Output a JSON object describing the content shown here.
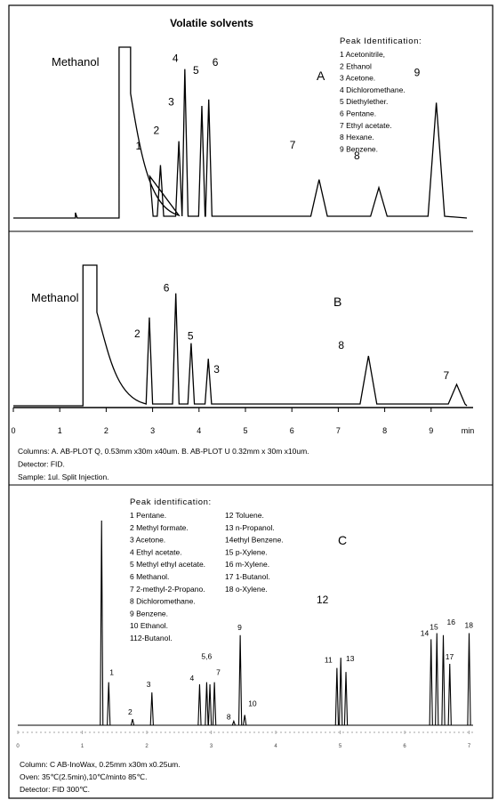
{
  "title": "Volatile solvents",
  "chart_data": [
    {
      "type": "line",
      "panel": "A",
      "solvent_label": "Methanol",
      "id_title": "Peak Identification:",
      "id_list": [
        "1  Acetonitrile,",
        "2  Ethanol",
        "3  Acetone.",
        "4 Dichloromethane.",
        "5 Diethylether.",
        "6 Pentane.",
        "7 Ethyl acetate.",
        " 8  Hexane.",
        "9 Benzene."
      ],
      "xlim": [
        0,
        10
      ],
      "solvent_peak": {
        "start": 2.3,
        "end": 2.55,
        "tail_end": 3.6
      },
      "peaks": [
        {
          "label": "1",
          "rt": 2.97,
          "height": 0.26
        },
        {
          "label": "2",
          "rt": 3.2,
          "height": 0.33
        },
        {
          "label": "3",
          "rt": 3.6,
          "height": 0.48
        },
        {
          "label": "4",
          "rt": 3.73,
          "height": 0.93
        },
        {
          "label": "5",
          "rt": 4.1,
          "height": 0.7
        },
        {
          "label": "6",
          "rt": 4.25,
          "height": 0.74
        },
        {
          "label": "7",
          "rt": 6.65,
          "height": 0.24
        },
        {
          "label": "8",
          "rt": 7.95,
          "height": 0.19
        },
        {
          "label": "9",
          "rt": 9.2,
          "height": 0.72
        }
      ]
    },
    {
      "type": "line",
      "panel": "B",
      "solvent_label": "Methanol",
      "xlim": [
        0,
        10
      ],
      "x_ticks": [
        "0",
        "1",
        "2",
        "3",
        "4",
        "5",
        "6",
        "7",
        "8",
        "9",
        "min"
      ],
      "solvent_peak": {
        "start": 1.5,
        "end": 1.8,
        "tail_end": 2.8
      },
      "peaks": [
        {
          "label": "2",
          "rt": 2.93,
          "height": 0.62
        },
        {
          "label": "6",
          "rt": 3.5,
          "height": 0.79
        },
        {
          "label": "5",
          "rt": 3.83,
          "height": 0.44
        },
        {
          "label": "3",
          "rt": 4.2,
          "height": 0.33
        },
        {
          "label": "8",
          "rt": 7.65,
          "height": 0.35
        },
        {
          "label": "7",
          "rt": 9.55,
          "height": 0.15
        }
      ]
    },
    {
      "type": "line",
      "panel": "C",
      "id_title": "Peak identification:",
      "id_list_left": [
        "1 Pentane.",
        "2 Methyl formate.",
        "3 Acetone.",
        "4 Ethyl acetate.",
        "5 Methyl ethyl acetate.",
        "6 Methanol.",
        "7 2-methyl-2-Propano.",
        "8 Dichloromethane.",
        "9 Benzene.",
        "10 Ethanol.",
        "112-Butanol."
      ],
      "id_list_right": [
        "12 Toluene.",
        "13 n-Propanol.",
        "14ethyl Benzene.",
        "15 p-Xylene.",
        "16 m-Xylene.",
        "17 1-Butanol.",
        "18 o-Xylene."
      ],
      "xlim": [
        0,
        7.2
      ],
      "x_ticks": [
        "0",
        "1",
        "2",
        "3",
        "4",
        "5",
        "6",
        "7"
      ],
      "solvent_peak": {
        "rt": 1.3,
        "height": 1.0
      },
      "peaks": [
        {
          "label": "1",
          "rt": 1.41,
          "height": 0.21
        },
        {
          "label": "2",
          "rt": 1.78,
          "height": 0.03
        },
        {
          "label": "3",
          "rt": 2.08,
          "height": 0.16
        },
        {
          "label": "4",
          "rt": 2.82,
          "height": 0.2
        },
        {
          "label": "5,6",
          "rt": 2.93,
          "height": 0.21
        },
        {
          "label": "",
          "rt": 2.98,
          "height": 0.2
        },
        {
          "label": "7",
          "rt": 3.05,
          "height": 0.21
        },
        {
          "label": "8",
          "rt": 3.35,
          "height": 0.02
        },
        {
          "label": "9",
          "rt": 3.45,
          "height": 0.44
        },
        {
          "label": "10",
          "rt": 3.52,
          "height": 0.05
        },
        {
          "label": "11",
          "rt": 4.95,
          "height": 0.28
        },
        {
          "label": "",
          "rt": 5.01,
          "height": 0.33
        },
        {
          "label": "13",
          "rt": 5.09,
          "height": 0.26
        },
        {
          "label": "14",
          "rt": 6.41,
          "height": 0.42
        },
        {
          "label": "15",
          "rt": 6.5,
          "height": 0.45
        },
        {
          "label": "16",
          "rt": 6.6,
          "height": 0.44
        },
        {
          "label": "17",
          "rt": 6.7,
          "height": 0.3
        },
        {
          "label": "18",
          "rt": 7.0,
          "height": 0.45
        }
      ],
      "label_12": "12"
    }
  ],
  "notes_ab": [
    "Columns:  A. AB-PLOT Q, 0.53mm x30m x40um.  B. AB-PLOT U 0.32mm x 30m x10um.",
    "Detector: FID.",
    "Sample: 1ul. Split Injection."
  ],
  "notes_c": [
    "Column: C AB-InoWax, 0.25mm x30m x0.25um.",
    "Oven: 35℃(2.5min),10℃/minto 85℃.",
    "Detector: FID 300℃."
  ],
  "colors": {
    "line": "#000000",
    "background": "#ffffff"
  }
}
